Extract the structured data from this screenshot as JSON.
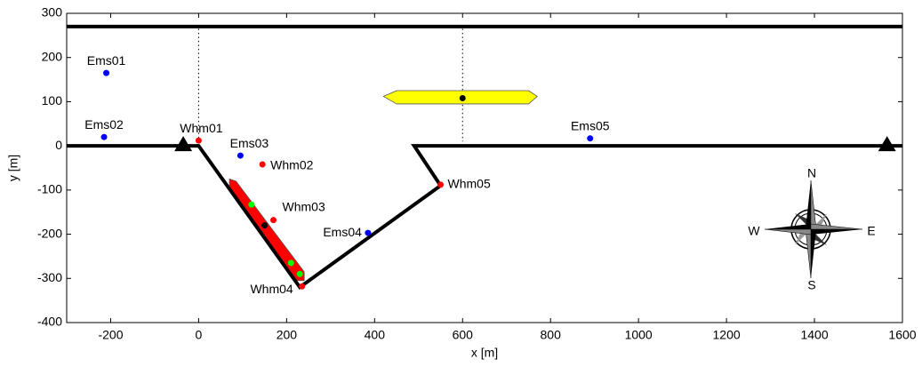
{
  "chart_data": {
    "type": "scatter",
    "xlabel": "x [m]",
    "ylabel": "y [m]",
    "xlim": [
      -300,
      1600
    ],
    "ylim": [
      -400,
      300
    ],
    "xticks": [
      -200,
      0,
      200,
      400,
      600,
      800,
      1000,
      1200,
      1400,
      1600
    ],
    "yticks": [
      -400,
      -300,
      -200,
      -100,
      0,
      100,
      200,
      300
    ],
    "lines": [
      {
        "x": [
          -300,
          1600
        ],
        "y": [
          270,
          270
        ],
        "color": "#000000"
      },
      {
        "x": [
          -300,
          0,
          230,
          550,
          490,
          1600
        ],
        "y": [
          0,
          0,
          -320,
          -90,
          0,
          0
        ],
        "color": "#000000"
      }
    ],
    "guides": [
      {
        "x": [
          0,
          0
        ],
        "y": [
          265,
          10
        ]
      },
      {
        "x": [
          600,
          600
        ],
        "y": [
          265,
          10
        ]
      }
    ],
    "ships": [
      {
        "x": [
          420,
          450,
          750,
          770,
          750,
          450
        ],
        "y": [
          112,
          125,
          125,
          112,
          95,
          95
        ],
        "color": "#ffff00"
      },
      {
        "x": [
          70,
          85,
          240,
          240,
          220,
          70
        ],
        "y": [
          -75,
          -80,
          -285,
          -305,
          -305,
          -95
        ],
        "color": "#ff0000"
      }
    ],
    "bollards": {
      "x": [
        -35,
        1565
      ],
      "y": [
        0,
        0
      ]
    },
    "points": [
      {
        "label": "Ems01",
        "x": -210,
        "y": 165,
        "color": "#0000ff"
      },
      {
        "label": "Ems02",
        "x": -215,
        "y": 20,
        "color": "#0000ff"
      },
      {
        "label": "Ems03",
        "x": 95,
        "y": -22,
        "color": "#0000ff"
      },
      {
        "label": "Ems04",
        "x": 385,
        "y": -197,
        "color": "#0000ff"
      },
      {
        "label": "Ems05",
        "x": 890,
        "y": 17,
        "color": "#0000ff"
      },
      {
        "label": "Whm01",
        "x": 0,
        "y": 12,
        "color": "#ff0000"
      },
      {
        "label": "Whm02",
        "x": 145,
        "y": -42,
        "color": "#ff0000"
      },
      {
        "label": "Whm03",
        "x": 170,
        "y": -168,
        "color": "#ff0000"
      },
      {
        "label": "Whm04",
        "x": 235,
        "y": -318,
        "color": "#ff0000"
      },
      {
        "label": "Whm05",
        "x": 550,
        "y": -88,
        "color": "#ff0000"
      }
    ],
    "markers": [
      {
        "x": 120,
        "y": -133,
        "color": "#00ff00"
      },
      {
        "x": 210,
        "y": -265,
        "color": "#00ff00"
      },
      {
        "x": 230,
        "y": -290,
        "color": "#00ff00"
      },
      {
        "x": 600,
        "y": 108,
        "color": "#000000"
      },
      {
        "x": 150,
        "y": -180,
        "color": "#000000"
      }
    ],
    "compass": {
      "labels": [
        "N",
        "E",
        "S",
        "W"
      ]
    }
  }
}
